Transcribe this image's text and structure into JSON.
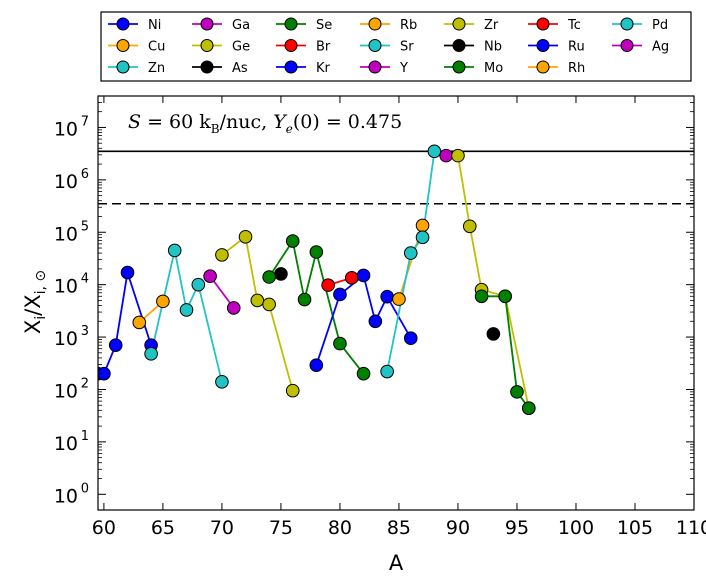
{
  "chart_data": {
    "type": "scatter",
    "annotation": "S = 60 k_B/nuc, Y_e(0) = 0.475",
    "annotation_parts": {
      "s": "S",
      "eq1": " = 60 k",
      "kb_sub": "B",
      "unit": "/nuc, ",
      "ye": "Y",
      "ye_sub": "e",
      "ye_arg": "(0) = 0.475"
    },
    "xlabel": "A",
    "ylabel_parts": {
      "x": "X",
      "sub_i": "i",
      "slash": "/X",
      "sub_isun": "i, ⊙"
    },
    "xlim": [
      59.5,
      110
    ],
    "ylim_log10": [
      -0.3,
      7.6
    ],
    "xticks": [
      60,
      65,
      70,
      75,
      80,
      85,
      90,
      95,
      100,
      105,
      110
    ],
    "yticks_exp": [
      0,
      1,
      2,
      3,
      4,
      5,
      6,
      7
    ],
    "ytick_base": "10",
    "hlines": [
      {
        "y": 3500000,
        "style": "solid"
      },
      {
        "y": 350000,
        "style": "dashed"
      }
    ],
    "legend_columns": 7,
    "series": [
      {
        "name": "Ni",
        "color": "#0000ff",
        "points": [
          [
            59.5,
            200
          ],
          [
            60,
            200
          ],
          [
            61,
            700
          ],
          [
            62,
            17000
          ],
          [
            64,
            700
          ]
        ]
      },
      {
        "name": "Cu",
        "color": "#ffa500",
        "points": [
          [
            63,
            1900
          ],
          [
            65,
            4800
          ]
        ]
      },
      {
        "name": "Zn",
        "color": "#20c4c4",
        "points": [
          [
            64,
            480
          ],
          [
            66,
            45000
          ],
          [
            67,
            3300
          ],
          [
            68,
            10000
          ],
          [
            70,
            140
          ]
        ]
      },
      {
        "name": "Ga",
        "color": "#bf00bf",
        "points": [
          [
            69,
            14500
          ],
          [
            71,
            3600
          ]
        ]
      },
      {
        "name": "Ge",
        "color": "#bfbf00",
        "points": [
          [
            70,
            37000
          ],
          [
            72,
            82000
          ],
          [
            73,
            5000
          ],
          [
            74,
            4200
          ],
          [
            76,
            95
          ]
        ]
      },
      {
        "name": "As",
        "color": "#000000",
        "points": [
          [
            75,
            16000
          ]
        ]
      },
      {
        "name": "Se",
        "color": "#007f00",
        "points": [
          [
            74,
            14000
          ],
          [
            76,
            68000
          ],
          [
            77,
            5200
          ],
          [
            78,
            42000
          ],
          [
            80,
            750
          ],
          [
            82,
            200
          ]
        ]
      },
      {
        "name": "Br",
        "color": "#ff0000",
        "points": [
          [
            79,
            9800
          ],
          [
            81,
            13500
          ]
        ]
      },
      {
        "name": "Kr",
        "color": "#0000ff",
        "points": [
          [
            78,
            290
          ],
          [
            80,
            6500
          ],
          [
            82,
            15000
          ],
          [
            83,
            2000
          ],
          [
            84,
            5900
          ],
          [
            86,
            950
          ]
        ]
      },
      {
        "name": "Rb",
        "color": "#ffa500",
        "points": [
          [
            85,
            5300
          ],
          [
            87,
            135000
          ]
        ]
      },
      {
        "name": "Sr",
        "color": "#20c4c4",
        "points": [
          [
            84,
            220
          ],
          [
            86,
            40000
          ],
          [
            87,
            80000
          ],
          [
            88,
            3500000
          ]
        ]
      },
      {
        "name": "Y",
        "color": "#bf00bf",
        "points": [
          [
            89,
            2900000
          ]
        ]
      },
      {
        "name": "Zr",
        "color": "#bfbf00",
        "points": [
          [
            90,
            2900000
          ],
          [
            91,
            130000
          ],
          [
            92,
            8000
          ],
          [
            94,
            6000
          ],
          [
            96,
            44
          ]
        ]
      },
      {
        "name": "Nb",
        "color": "#000000",
        "points": [
          [
            93,
            1150
          ]
        ]
      },
      {
        "name": "Mo",
        "color": "#007f00",
        "points": [
          [
            92,
            6000
          ],
          [
            94,
            6000
          ],
          [
            95,
            90
          ],
          [
            96,
            44
          ]
        ]
      },
      {
        "name": "Tc",
        "color": "#ff0000",
        "points": []
      },
      {
        "name": "Ru",
        "color": "#0000ff",
        "points": []
      },
      {
        "name": "Rh",
        "color": "#ffa500",
        "points": []
      },
      {
        "name": "Pd",
        "color": "#20c4c4",
        "points": []
      },
      {
        "name": "Ag",
        "color": "#bf00bf",
        "points": []
      }
    ]
  }
}
